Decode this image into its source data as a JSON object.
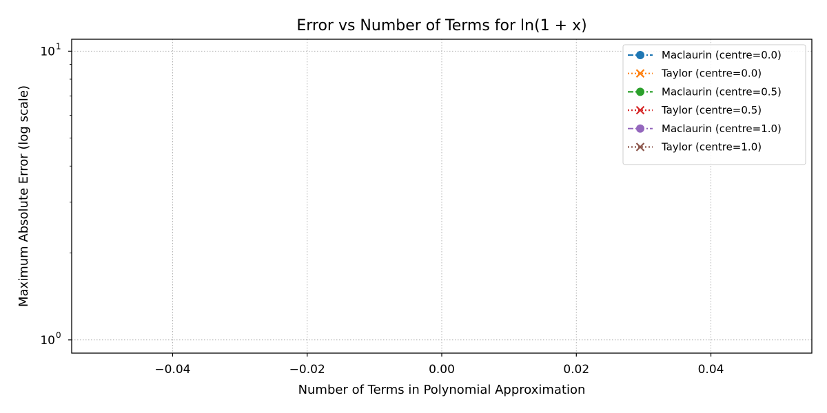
{
  "chart_data": {
    "type": "line",
    "title": "Error vs Number of Terms for ln(1 + x)",
    "xlabel": "Number of Terms in Polynomial Approximation",
    "ylabel": "Maximum Absolute Error (log scale)",
    "xlim": [
      -0.055,
      0.055
    ],
    "ylim": [
      0.9,
      11
    ],
    "yscale": "log",
    "grid": true,
    "legend_position": "top-right",
    "x_ticks": [
      -0.04,
      -0.02,
      0.0,
      0.02,
      0.04
    ],
    "x_tick_labels": [
      "−0.04",
      "−0.02",
      "0.00",
      "0.02",
      "0.04"
    ],
    "y_ticks": [
      {
        "value": 1,
        "base": "10",
        "exp": "0"
      },
      {
        "value": 10,
        "base": "10",
        "exp": "1"
      }
    ],
    "series": [
      {
        "name": "Maclaurin (centre=0.0)",
        "color": "#1f77b4",
        "marker": "circle",
        "linestyle": "dashdot",
        "x": [],
        "y": []
      },
      {
        "name": "Taylor (centre=0.0)",
        "color": "#ff7f0e",
        "marker": "x",
        "linestyle": "dotted",
        "x": [],
        "y": []
      },
      {
        "name": "Maclaurin (centre=0.5)",
        "color": "#2ca02c",
        "marker": "circle",
        "linestyle": "dashdot",
        "x": [],
        "y": []
      },
      {
        "name": "Taylor (centre=0.5)",
        "color": "#d62728",
        "marker": "x",
        "linestyle": "dotted",
        "x": [],
        "y": []
      },
      {
        "name": "Maclaurin (centre=1.0)",
        "color": "#9467bd",
        "marker": "circle",
        "linestyle": "dashdot",
        "x": [],
        "y": []
      },
      {
        "name": "Taylor (centre=1.0)",
        "color": "#8c564b",
        "marker": "x",
        "linestyle": "dotted",
        "x": [],
        "y": []
      }
    ]
  }
}
